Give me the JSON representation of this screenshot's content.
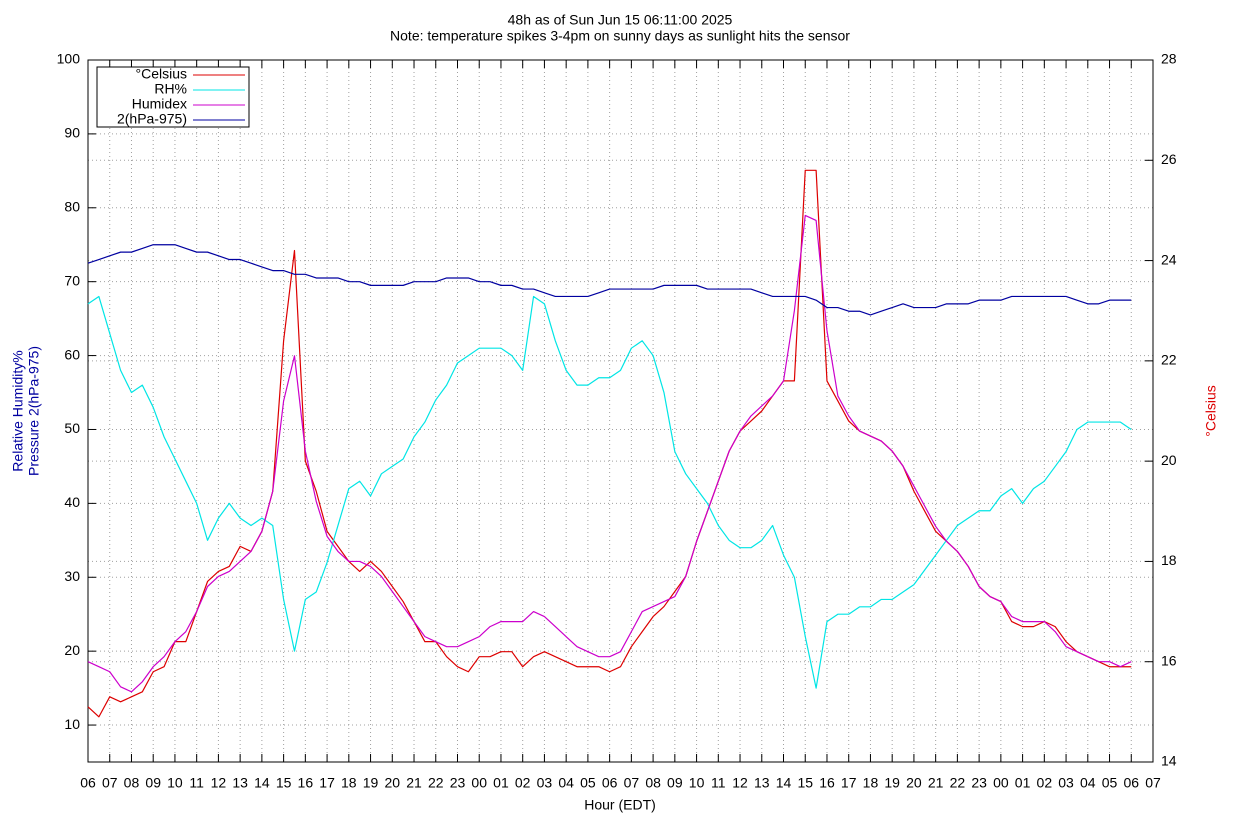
{
  "chart_data": {
    "type": "line",
    "title": "48h as of Sun Jun 15 06:11:00 2025",
    "subtitle": "Note: temperature spikes 3-4pm on sunny days as sunlight hits the sensor",
    "x_label": "Hour (EDT)",
    "y_label": [
      "Relative Humidity%",
      "Pressure 2(hPa-975)"
    ],
    "y2_label": "°Celsius",
    "grid": true,
    "legend": "top-left",
    "xlim": [
      0,
      49
    ],
    "xticks": [
      {
        "value": 0,
        "label": "06"
      },
      {
        "value": 1,
        "label": "07"
      },
      {
        "value": 2,
        "label": "08"
      },
      {
        "value": 3,
        "label": "09"
      },
      {
        "value": 4,
        "label": "10"
      },
      {
        "value": 5,
        "label": "11"
      },
      {
        "value": 6,
        "label": "12"
      },
      {
        "value": 7,
        "label": "13"
      },
      {
        "value": 8,
        "label": "14"
      },
      {
        "value": 9,
        "label": "15"
      },
      {
        "value": 10,
        "label": "16"
      },
      {
        "value": 11,
        "label": "17"
      },
      {
        "value": 12,
        "label": "18"
      },
      {
        "value": 13,
        "label": "19"
      },
      {
        "value": 14,
        "label": "20"
      },
      {
        "value": 15,
        "label": "21"
      },
      {
        "value": 16,
        "label": "22"
      },
      {
        "value": 17,
        "label": "23"
      },
      {
        "value": 18,
        "label": "00"
      },
      {
        "value": 19,
        "label": "01"
      },
      {
        "value": 20,
        "label": "02"
      },
      {
        "value": 21,
        "label": "03"
      },
      {
        "value": 22,
        "label": "04"
      },
      {
        "value": 23,
        "label": "05"
      },
      {
        "value": 24,
        "label": "06"
      },
      {
        "value": 25,
        "label": "07"
      },
      {
        "value": 26,
        "label": "08"
      },
      {
        "value": 27,
        "label": "09"
      },
      {
        "value": 28,
        "label": "10"
      },
      {
        "value": 29,
        "label": "11"
      },
      {
        "value": 30,
        "label": "12"
      },
      {
        "value": 31,
        "label": "13"
      },
      {
        "value": 32,
        "label": "14"
      },
      {
        "value": 33,
        "label": "15"
      },
      {
        "value": 34,
        "label": "16"
      },
      {
        "value": 35,
        "label": "17"
      },
      {
        "value": 36,
        "label": "18"
      },
      {
        "value": 37,
        "label": "19"
      },
      {
        "value": 38,
        "label": "20"
      },
      {
        "value": 39,
        "label": "21"
      },
      {
        "value": 40,
        "label": "22"
      },
      {
        "value": 41,
        "label": "23"
      },
      {
        "value": 42,
        "label": "00"
      },
      {
        "value": 43,
        "label": "01"
      },
      {
        "value": 44,
        "label": "02"
      },
      {
        "value": 45,
        "label": "03"
      },
      {
        "value": 46,
        "label": "04"
      },
      {
        "value": 47,
        "label": "05"
      },
      {
        "value": 48,
        "label": "06"
      },
      {
        "value": 49,
        "label": "07"
      }
    ],
    "ylim": [
      5,
      100
    ],
    "yticks": [
      10,
      20,
      30,
      40,
      50,
      60,
      70,
      80,
      90,
      100
    ],
    "y2lim": [
      14,
      28
    ],
    "y2ticks": [
      14,
      16,
      18,
      20,
      22,
      24,
      26,
      28
    ],
    "x": [
      0,
      0.5,
      1,
      1.5,
      2,
      2.5,
      3,
      3.5,
      4,
      4.5,
      5,
      5.5,
      6,
      6.5,
      7,
      7.5,
      8,
      8.5,
      9,
      9.5,
      10,
      10.5,
      11,
      11.5,
      12,
      12.5,
      13,
      13.5,
      14,
      14.5,
      15,
      15.5,
      16,
      16.5,
      17,
      17.5,
      18,
      18.5,
      19,
      19.5,
      20,
      20.5,
      21,
      21.5,
      22,
      22.5,
      23,
      23.5,
      24,
      24.5,
      25,
      25.5,
      26,
      26.5,
      27,
      27.5,
      28,
      28.5,
      29,
      29.5,
      30,
      30.5,
      31,
      31.5,
      32,
      32.5,
      33,
      33.5,
      34,
      34.5,
      35,
      35.5,
      36,
      36.5,
      37,
      37.5,
      38,
      38.5,
      39,
      39.5,
      40,
      40.5,
      41,
      41.5,
      42,
      42.5,
      43,
      43.5,
      44,
      44.5,
      45,
      45.5,
      46,
      46.5,
      47,
      47.5,
      48
    ],
    "series": [
      {
        "name": "°Celsius",
        "color": "#dd0000",
        "axis": "y2",
        "values": [
          15.1,
          14.9,
          15.3,
          15.2,
          15.3,
          15.4,
          15.8,
          15.9,
          16.4,
          16.4,
          17.0,
          17.6,
          17.8,
          17.9,
          18.3,
          18.2,
          18.6,
          19.4,
          22.4,
          24.2,
          20.0,
          19.4,
          18.6,
          18.3,
          18.0,
          17.8,
          18.0,
          17.8,
          17.5,
          17.2,
          16.8,
          16.4,
          16.4,
          16.1,
          15.9,
          15.8,
          16.1,
          16.1,
          16.2,
          16.2,
          15.9,
          16.1,
          16.2,
          16.1,
          16.0,
          15.9,
          15.9,
          15.9,
          15.8,
          15.9,
          16.3,
          16.6,
          16.9,
          17.1,
          17.4,
          17.7,
          18.4,
          19.0,
          19.6,
          20.2,
          20.6,
          20.8,
          21.0,
          21.3,
          21.6,
          21.6,
          25.8,
          25.8,
          21.6,
          21.2,
          20.8,
          20.6,
          20.5,
          20.4,
          20.2,
          19.9,
          19.4,
          19.0,
          18.6,
          18.4,
          18.2,
          17.9,
          17.5,
          17.3,
          17.2,
          16.8,
          16.7,
          16.7,
          16.8,
          16.7,
          16.4,
          16.2,
          16.1,
          16.0,
          15.9,
          15.9,
          15.9
        ]
      },
      {
        "name": "RH%",
        "color": "#00e5e5",
        "values": [
          67,
          68,
          63,
          58,
          55,
          56,
          53,
          49,
          46,
          43,
          40,
          35,
          38,
          40,
          38,
          37,
          38,
          37,
          27,
          20,
          27,
          28,
          32,
          37,
          42,
          43,
          41,
          44,
          45,
          46,
          49,
          51,
          54,
          56,
          59,
          60,
          61,
          61,
          61,
          60,
          58,
          68,
          67,
          62,
          58,
          56,
          56,
          57,
          57,
          58,
          61,
          62,
          60,
          55,
          47,
          44,
          42,
          40,
          37,
          35,
          34,
          34,
          35,
          37,
          33,
          30,
          22,
          15,
          24,
          25,
          25,
          26,
          26,
          27,
          27,
          28,
          29,
          31,
          33,
          35,
          37,
          38,
          39,
          39,
          41,
          42,
          40,
          42,
          43,
          45,
          47,
          50,
          51,
          51,
          51,
          51,
          50
        ]
      },
      {
        "name": "Humidex",
        "color": "#cc00cc",
        "axis": "y2",
        "values": [
          16.0,
          15.9,
          15.8,
          15.5,
          15.4,
          15.6,
          15.9,
          16.1,
          16.4,
          16.6,
          17.0,
          17.5,
          17.7,
          17.8,
          18.0,
          18.2,
          18.6,
          19.4,
          21.2,
          22.1,
          20.2,
          19.2,
          18.5,
          18.2,
          18.0,
          18.0,
          17.9,
          17.7,
          17.4,
          17.1,
          16.8,
          16.5,
          16.4,
          16.3,
          16.3,
          16.4,
          16.5,
          16.7,
          16.8,
          16.8,
          16.8,
          17.0,
          16.9,
          16.7,
          16.5,
          16.3,
          16.2,
          16.1,
          16.1,
          16.2,
          16.6,
          17.0,
          17.1,
          17.2,
          17.3,
          17.7,
          18.4,
          19.0,
          19.6,
          20.2,
          20.6,
          20.9,
          21.1,
          21.3,
          21.6,
          23.0,
          24.9,
          24.8,
          22.6,
          21.3,
          20.9,
          20.6,
          20.5,
          20.4,
          20.2,
          19.9,
          19.5,
          19.1,
          18.7,
          18.4,
          18.2,
          17.9,
          17.5,
          17.3,
          17.2,
          16.9,
          16.8,
          16.8,
          16.8,
          16.6,
          16.3,
          16.2,
          16.1,
          16.0,
          16.0,
          15.9,
          16.0
        ]
      },
      {
        "name": "2(hPa-975)",
        "color": "#0000a0",
        "values": [
          72.5,
          73,
          73.5,
          74,
          74,
          74.5,
          75,
          75,
          75,
          74.5,
          74,
          74,
          73.5,
          73,
          73,
          72.5,
          72,
          71.5,
          71.5,
          71,
          71,
          70.5,
          70.5,
          70.5,
          70,
          70,
          69.5,
          69.5,
          69.5,
          69.5,
          70,
          70,
          70,
          70.5,
          70.5,
          70.5,
          70,
          70,
          69.5,
          69.5,
          69,
          69,
          68.5,
          68,
          68,
          68,
          68,
          68.5,
          69,
          69,
          69,
          69,
          69,
          69.5,
          69.5,
          69.5,
          69.5,
          69,
          69,
          69,
          69,
          69,
          68.5,
          68,
          68,
          68,
          68,
          67.5,
          66.5,
          66.5,
          66,
          66,
          65.5,
          66,
          66.5,
          67,
          66.5,
          66.5,
          66.5,
          67,
          67,
          67,
          67.5,
          67.5,
          67.5,
          68,
          68,
          68,
          68,
          68,
          68,
          67.5,
          67,
          67,
          67.5,
          67.5,
          67.5
        ]
      }
    ]
  }
}
